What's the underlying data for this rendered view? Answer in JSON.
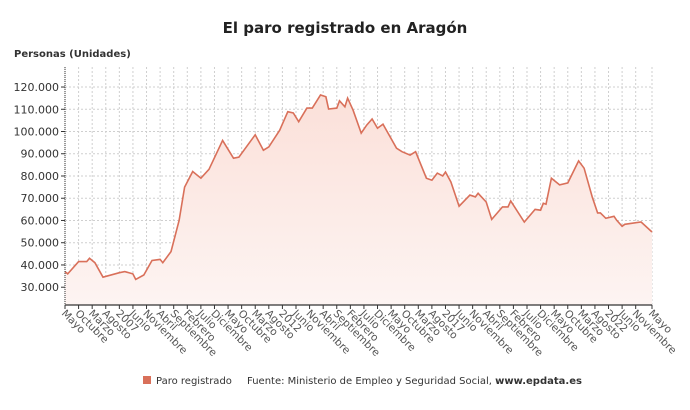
{
  "chart_data": {
    "type": "area",
    "title": "El paro registrado en Aragón",
    "ylabel": "Personas (Unidades)",
    "xlabel": "",
    "ylim": [
      22000,
      129000
    ],
    "yticks": [
      30000,
      40000,
      50000,
      60000,
      70000,
      80000,
      90000,
      100000,
      110000,
      120000
    ],
    "ytick_labels": [
      "30.000",
      "40.000",
      "50.000",
      "60.000",
      "70.000",
      "80.000",
      "90.000",
      "100.000",
      "110.000",
      "120.000"
    ],
    "x_start": "2005-05",
    "x_end": "2023-05",
    "xtick_labels": [
      "Mayo",
      "Octubre",
      "Marzo",
      "Agosto",
      "2007",
      "Junio",
      "Noviembre",
      "Abril",
      "Septiembre",
      "Febrero",
      "Julio",
      "Diciembre",
      "Mayo",
      "Octubre",
      "Marzo",
      "Agosto",
      "2012",
      "Junio",
      "Noviembre",
      "Abril",
      "Septiembre",
      "Febrero",
      "Julio",
      "Diciembre",
      "Mayo",
      "Octubre",
      "Marzo",
      "Agosto",
      "2017",
      "Junio",
      "Noviembre",
      "Abril",
      "Septiembre",
      "Febrero",
      "Julio",
      "Diciembre",
      "Mayo",
      "Octubre",
      "Marzo",
      "Agosto",
      "2022",
      "Junio",
      "Noviembre",
      "Mayo"
    ],
    "xtick_months": [
      0,
      5,
      10,
      15,
      20,
      25,
      30,
      35,
      40,
      45,
      50,
      55,
      60,
      65,
      70,
      75,
      80,
      85,
      90,
      95,
      100,
      105,
      110,
      115,
      120,
      125,
      130,
      135,
      140,
      145,
      150,
      155,
      160,
      165,
      170,
      175,
      180,
      185,
      190,
      195,
      200,
      205,
      210,
      216
    ],
    "grid": true,
    "legend_position": "bottom",
    "series": [
      {
        "name": "Paro registrado",
        "color": "#d9705a",
        "points": [
          [
            "2005-05",
            37000
          ],
          [
            "2005-06",
            36000
          ],
          [
            "2005-10",
            41500
          ],
          [
            "2006-01",
            41500
          ],
          [
            "2006-02",
            43000
          ],
          [
            "2006-04",
            41000
          ],
          [
            "2006-07",
            34500
          ],
          [
            "2007-01",
            36500
          ],
          [
            "2007-03",
            37000
          ],
          [
            "2007-06",
            36000
          ],
          [
            "2007-07",
            33500
          ],
          [
            "2007-10",
            35500
          ],
          [
            "2008-01",
            42000
          ],
          [
            "2008-04",
            42500
          ],
          [
            "2008-05",
            41000
          ],
          [
            "2008-08",
            46000
          ],
          [
            "2008-11",
            60000
          ],
          [
            "2009-01",
            75000
          ],
          [
            "2009-04",
            82000
          ],
          [
            "2009-07",
            79000
          ],
          [
            "2009-10",
            83000
          ],
          [
            "2010-03",
            96000
          ],
          [
            "2010-07",
            88000
          ],
          [
            "2010-09",
            88500
          ],
          [
            "2011-03",
            98500
          ],
          [
            "2011-06",
            91600
          ],
          [
            "2011-08",
            93100
          ],
          [
            "2011-12",
            100600
          ],
          [
            "2012-03",
            108900
          ],
          [
            "2012-05",
            108300
          ],
          [
            "2012-07",
            104400
          ],
          [
            "2012-10",
            110500
          ],
          [
            "2012-12",
            110500
          ],
          [
            "2013-03",
            116400
          ],
          [
            "2013-05",
            115600
          ],
          [
            "2013-06",
            110100
          ],
          [
            "2013-09",
            110500
          ],
          [
            "2013-10",
            113800
          ],
          [
            "2013-12",
            111100
          ],
          [
            "2014-01",
            115000
          ],
          [
            "2014-03",
            109600
          ],
          [
            "2014-06",
            99300
          ],
          [
            "2014-08",
            102900
          ],
          [
            "2014-10",
            105600
          ],
          [
            "2014-12",
            101500
          ],
          [
            "2015-02",
            103300
          ],
          [
            "2015-07",
            92500
          ],
          [
            "2015-09",
            90900
          ],
          [
            "2015-12",
            89400
          ],
          [
            "2016-02",
            90900
          ],
          [
            "2016-06",
            79000
          ],
          [
            "2016-08",
            78100
          ],
          [
            "2016-10",
            81300
          ],
          [
            "2016-12",
            80000
          ],
          [
            "2017-01",
            81800
          ],
          [
            "2017-03",
            77300
          ],
          [
            "2017-06",
            66400
          ],
          [
            "2017-10",
            71400
          ],
          [
            "2017-12",
            70600
          ],
          [
            "2018-01",
            72200
          ],
          [
            "2018-04",
            68300
          ],
          [
            "2018-06",
            60500
          ],
          [
            "2018-10",
            66100
          ],
          [
            "2018-12",
            66100
          ],
          [
            "2019-01",
            68800
          ],
          [
            "2019-06",
            59300
          ],
          [
            "2019-10",
            65000
          ],
          [
            "2019-12",
            64600
          ],
          [
            "2020-01",
            67700
          ],
          [
            "2020-02",
            67300
          ],
          [
            "2020-04",
            79000
          ],
          [
            "2020-07",
            76000
          ],
          [
            "2020-10",
            76900
          ],
          [
            "2021-02",
            86800
          ],
          [
            "2021-04",
            83500
          ],
          [
            "2021-07",
            70600
          ],
          [
            "2021-09",
            63400
          ],
          [
            "2021-10",
            63400
          ],
          [
            "2021-12",
            61000
          ],
          [
            "2022-03",
            61900
          ],
          [
            "2022-04",
            60100
          ],
          [
            "2022-06",
            57400
          ],
          [
            "2022-07",
            58300
          ],
          [
            "2023-01",
            59300
          ],
          [
            "2023-05",
            54800
          ]
        ]
      }
    ]
  },
  "legend": {
    "label": "Paro registrado"
  },
  "source": {
    "text": "Fuente: Ministerio de Empleo y Seguridad Social, ",
    "link": "www.epdata.es"
  }
}
